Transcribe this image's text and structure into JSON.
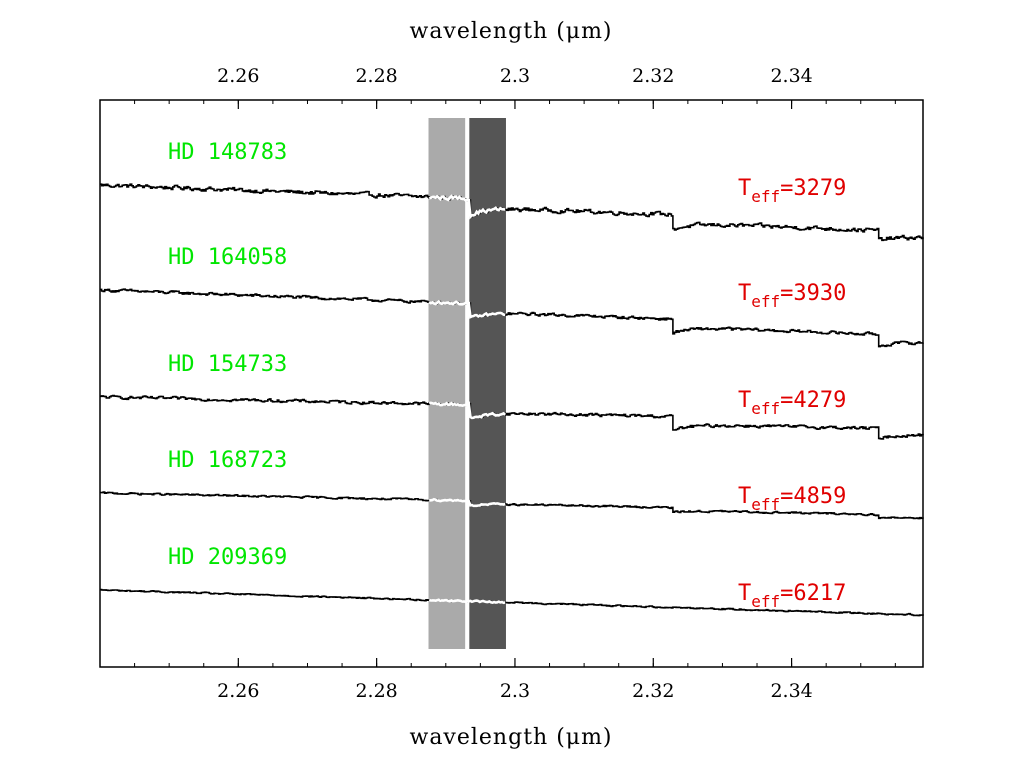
{
  "chart_data": {
    "type": "line",
    "xlabel": "wavelength (μm)",
    "xlim": [
      2.24,
      2.359
    ],
    "x_ticks": [
      2.26,
      2.28,
      2.3,
      2.32,
      2.34
    ],
    "x_tick_labels": [
      "2.26",
      "2.28",
      "2.3",
      "2.32",
      "2.34"
    ],
    "colors": {
      "label_green": "#00e600",
      "label_red": "#e00000",
      "band_light": "#aaaaaa",
      "band_dark": "#555555",
      "trace": "#000000",
      "band_overlay": "#ffffff"
    },
    "bands": [
      {
        "name": "continuum",
        "x0": 2.2875,
        "x1": 2.2928,
        "color": "#aaaaaa"
      },
      {
        "name": "CO-bandhead",
        "x0": 2.2934,
        "x1": 2.2987,
        "color": "#555555"
      }
    ],
    "co_bandhead_edges": [
      2.2935,
      2.3227,
      2.3525
    ],
    "series": [
      {
        "name": "HD 148783",
        "teff": "3279",
        "start_level": 0.52,
        "slope": 0.3,
        "bandhead_depths": [
          0.16,
          0.15,
          0.1
        ],
        "noise": 0.035
      },
      {
        "name": "HD 164058",
        "teff": "3930",
        "start_level": -0.53,
        "slope": 0.3,
        "bandhead_depths": [
          0.15,
          0.14,
          0.12
        ],
        "noise": 0.025
      },
      {
        "name": "HD 154733",
        "teff": "4279",
        "start_level": -1.6,
        "slope": 0.17,
        "bandhead_depths": [
          0.14,
          0.14,
          0.1
        ],
        "noise": 0.025
      },
      {
        "name": "HD 168723",
        "teff": "4859",
        "start_level": -2.56,
        "slope": 0.17,
        "bandhead_depths": [
          0.05,
          0.05,
          0.04
        ],
        "noise": 0.015
      },
      {
        "name": "HD 209369",
        "teff": "6217",
        "start_level": -3.53,
        "slope": 0.25,
        "bandhead_depths": [
          0.0,
          0.0,
          0.0
        ],
        "noise": 0.012
      }
    ],
    "teff_prefix": "T",
    "teff_subscript": "eff",
    "teff_equals": "="
  }
}
